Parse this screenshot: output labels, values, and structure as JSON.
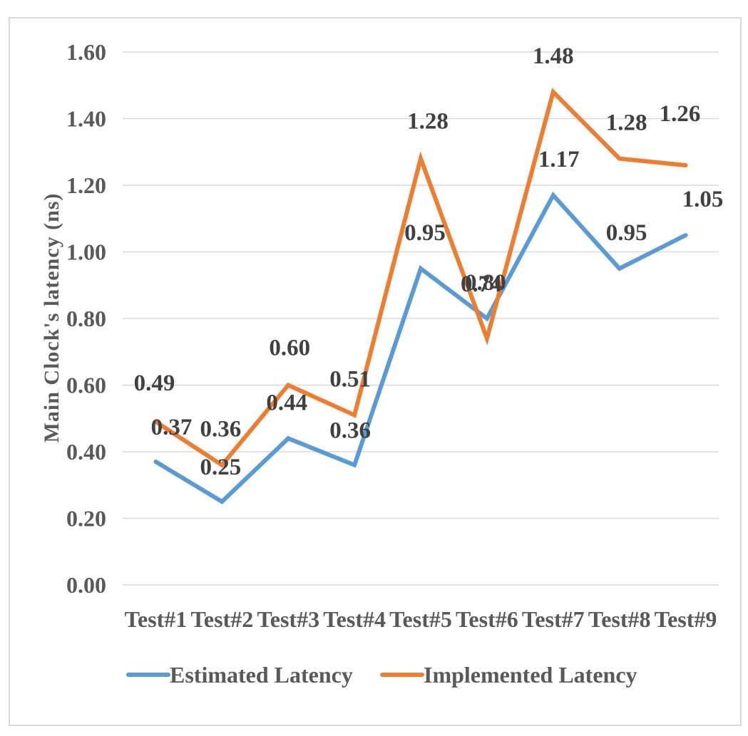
{
  "chart_data": {
    "type": "line",
    "title": "",
    "xlabel": "",
    "ylabel": "Main Clock's latency (ns)",
    "ylim": [
      0,
      1.6
    ],
    "yticks": [
      "0.00",
      "0.20",
      "0.40",
      "0.60",
      "0.80",
      "1.00",
      "1.20",
      "1.40",
      "1.60"
    ],
    "categories": [
      "Test#1",
      "Test#2",
      "Test#3",
      "Test#4",
      "Test#5",
      "Test#6",
      "Test#7",
      "Test#8",
      "Test#9"
    ],
    "grid": true,
    "legend_position": "bottom",
    "series": [
      {
        "name": "Estimated Latency",
        "color": "#5b9bd5",
        "values": [
          0.37,
          0.25,
          0.44,
          0.36,
          0.95,
          0.8,
          1.17,
          0.95,
          1.05
        ],
        "labels": [
          "0.37",
          "0.25",
          "0.44",
          "0.36",
          "0.95",
          "0.80",
          "1.17",
          "0.95",
          "1.05"
        ]
      },
      {
        "name": "Implemented Latency",
        "color": "#ed7d31",
        "values": [
          0.49,
          0.36,
          0.6,
          0.51,
          1.28,
          0.74,
          1.48,
          1.28,
          1.26
        ],
        "labels": [
          "0.49",
          "0.36",
          "0.60",
          "0.51",
          "1.28",
          "0.74",
          "1.48",
          "1.28",
          "1.26"
        ]
      }
    ]
  }
}
